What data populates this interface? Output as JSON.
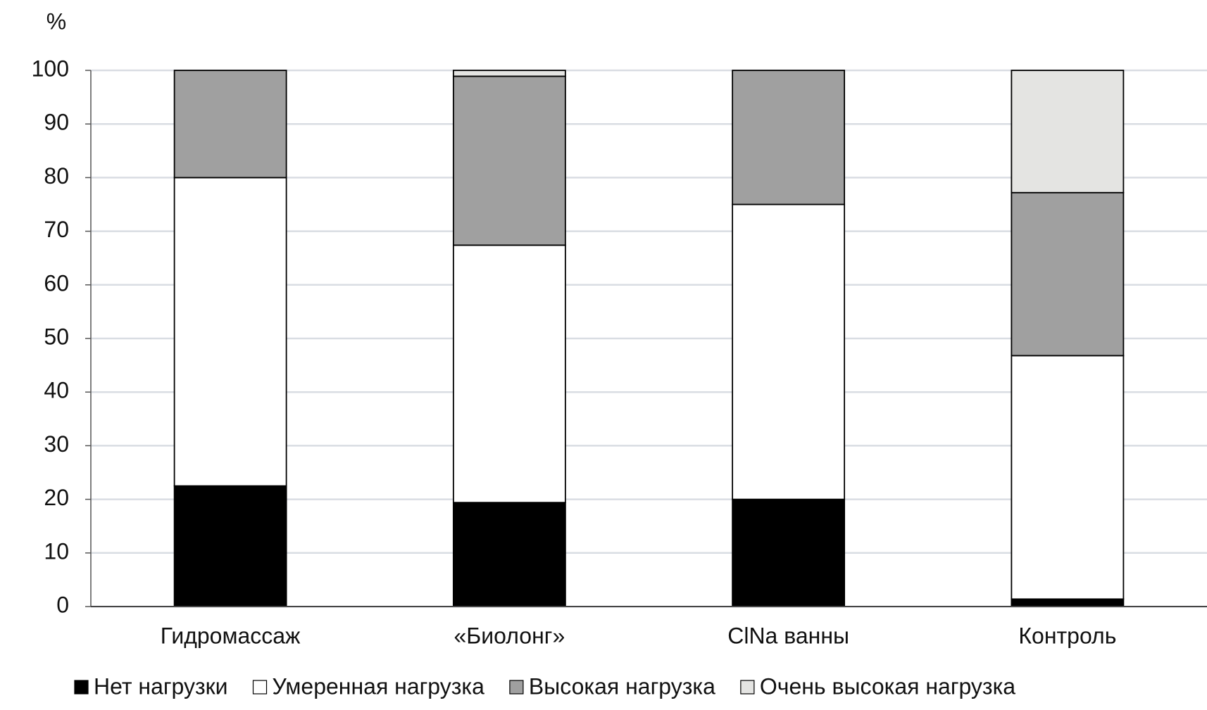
{
  "chart_data": {
    "type": "stacked_bar",
    "y_label": "%",
    "categories": [
      "Гидромассаж",
      "«Биолонг»",
      "ClNa ванны",
      "Контроль"
    ],
    "series": [
      {
        "name": "Нет нагрузки",
        "color": "#000000",
        "values": [
          22.5,
          19.4,
          20,
          1.4
        ]
      },
      {
        "name": "Умеренная нагрузка",
        "color": "#ffffff",
        "values": [
          57.5,
          48.0,
          55,
          45.4
        ]
      },
      {
        "name": "Высокая нагрузка",
        "color": "#a0a0a0",
        "values": [
          20,
          31.5,
          25,
          30.4
        ]
      },
      {
        "name": "Очень высокая нагрузка",
        "color": "#e4e4e2",
        "values": [
          0,
          1.1,
          0,
          22.8
        ]
      }
    ],
    "ylim": [
      0,
      100
    ],
    "yticks": [
      0,
      10,
      20,
      30,
      40,
      50,
      60,
      70,
      80,
      90,
      100
    ],
    "grid": true
  }
}
